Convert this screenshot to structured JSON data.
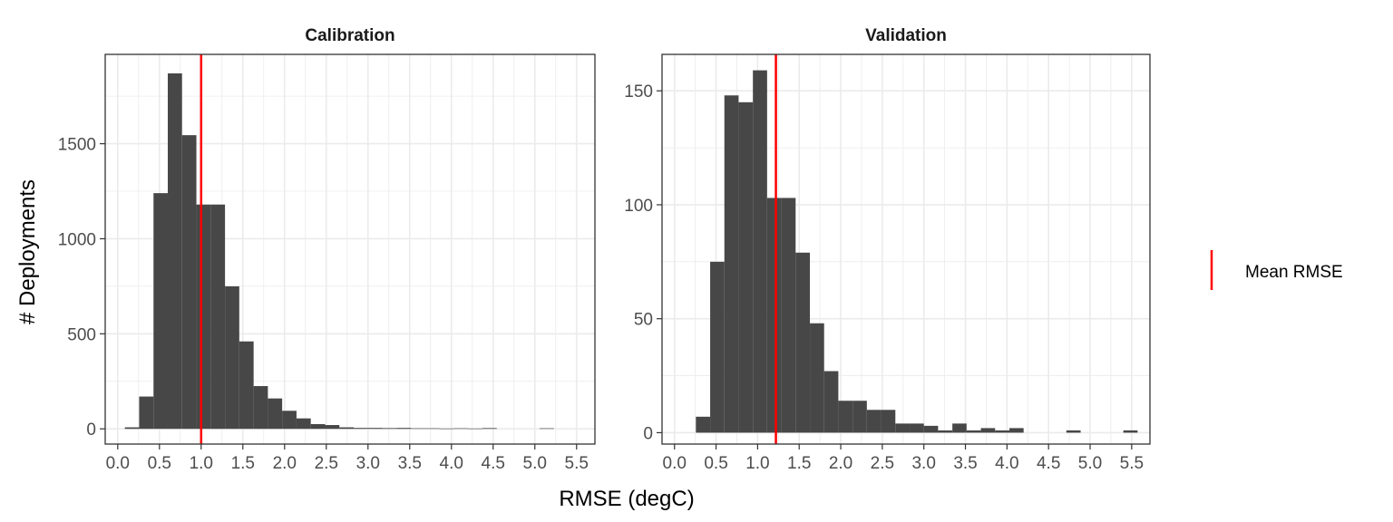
{
  "figure": {
    "xlabel": "RMSE (degC)",
    "ylabel": "# Deployments",
    "legend": {
      "label": "Mean RMSE",
      "color": "#ff0000",
      "position": "right"
    },
    "bar_color": "#474747",
    "grid_color": "#ebebeb",
    "panel_border_color": "#333333"
  },
  "chart_data": [
    {
      "type": "bar",
      "title": "Calibration",
      "xlabel": "RMSE (degC)",
      "ylabel": "# Deployments",
      "bin_width": 0.1714,
      "bins": [
        {
          "x0": 0.086,
          "x1": 0.257,
          "count": 8
        },
        {
          "x0": 0.257,
          "x1": 0.429,
          "count": 170
        },
        {
          "x0": 0.429,
          "x1": 0.6,
          "count": 1240
        },
        {
          "x0": 0.6,
          "x1": 0.771,
          "count": 1870
        },
        {
          "x0": 0.771,
          "x1": 0.943,
          "count": 1545
        },
        {
          "x0": 0.943,
          "x1": 1.114,
          "count": 1180
        },
        {
          "x0": 1.114,
          "x1": 1.286,
          "count": 1180
        },
        {
          "x0": 1.286,
          "x1": 1.457,
          "count": 750
        },
        {
          "x0": 1.457,
          "x1": 1.629,
          "count": 460
        },
        {
          "x0": 1.629,
          "x1": 1.8,
          "count": 225
        },
        {
          "x0": 1.8,
          "x1": 1.971,
          "count": 160
        },
        {
          "x0": 1.971,
          "x1": 2.143,
          "count": 95
        },
        {
          "x0": 2.143,
          "x1": 2.314,
          "count": 55
        },
        {
          "x0": 2.314,
          "x1": 2.486,
          "count": 25
        },
        {
          "x0": 2.486,
          "x1": 2.657,
          "count": 20
        },
        {
          "x0": 2.657,
          "x1": 2.829,
          "count": 8
        },
        {
          "x0": 2.829,
          "x1": 3.0,
          "count": 5
        },
        {
          "x0": 3.0,
          "x1": 3.171,
          "count": 5
        },
        {
          "x0": 3.171,
          "x1": 3.343,
          "count": 4
        },
        {
          "x0": 3.343,
          "x1": 3.514,
          "count": 5
        },
        {
          "x0": 3.514,
          "x1": 3.686,
          "count": 3
        },
        {
          "x0": 3.686,
          "x1": 3.857,
          "count": 3
        },
        {
          "x0": 3.857,
          "x1": 4.029,
          "count": 2
        },
        {
          "x0": 4.029,
          "x1": 4.2,
          "count": 3
        },
        {
          "x0": 4.2,
          "x1": 4.371,
          "count": 2
        },
        {
          "x0": 4.371,
          "x1": 4.543,
          "count": 4
        },
        {
          "x0": 5.057,
          "x1": 5.229,
          "count": 3
        }
      ],
      "mean_line": 1.0,
      "xlim": [
        -0.15,
        5.72
      ],
      "ylim": [
        -80,
        1970
      ],
      "xticks": [
        0.0,
        0.5,
        1.0,
        1.5,
        2.0,
        2.5,
        3.0,
        3.5,
        4.0,
        4.5,
        5.0,
        5.5
      ],
      "xtick_labels": [
        "0.0",
        "0.5",
        "1.0",
        "1.5",
        "2.0",
        "2.5",
        "3.0",
        "3.5",
        "4.0",
        "4.5",
        "5.0",
        "5.5"
      ],
      "yticks": [
        0,
        500,
        1000,
        1500
      ],
      "ytick_labels": [
        "0",
        "500",
        "1000",
        "1500"
      ],
      "grid": true
    },
    {
      "type": "bar",
      "title": "Validation",
      "xlabel": "RMSE (degC)",
      "ylabel": "# Deployments",
      "bin_width": 0.1714,
      "bins": [
        {
          "x0": 0.257,
          "x1": 0.429,
          "count": 7
        },
        {
          "x0": 0.429,
          "x1": 0.6,
          "count": 75
        },
        {
          "x0": 0.6,
          "x1": 0.771,
          "count": 148
        },
        {
          "x0": 0.771,
          "x1": 0.943,
          "count": 145
        },
        {
          "x0": 0.943,
          "x1": 1.114,
          "count": 159
        },
        {
          "x0": 1.114,
          "x1": 1.286,
          "count": 103
        },
        {
          "x0": 1.286,
          "x1": 1.457,
          "count": 103
        },
        {
          "x0": 1.457,
          "x1": 1.629,
          "count": 79
        },
        {
          "x0": 1.629,
          "x1": 1.8,
          "count": 48
        },
        {
          "x0": 1.8,
          "x1": 1.971,
          "count": 27
        },
        {
          "x0": 1.971,
          "x1": 2.143,
          "count": 14
        },
        {
          "x0": 2.143,
          "x1": 2.314,
          "count": 14
        },
        {
          "x0": 2.314,
          "x1": 2.486,
          "count": 10
        },
        {
          "x0": 2.486,
          "x1": 2.657,
          "count": 10
        },
        {
          "x0": 2.657,
          "x1": 2.829,
          "count": 4
        },
        {
          "x0": 2.829,
          "x1": 3.0,
          "count": 4
        },
        {
          "x0": 3.0,
          "x1": 3.171,
          "count": 3
        },
        {
          "x0": 3.171,
          "x1": 3.343,
          "count": 1
        },
        {
          "x0": 3.343,
          "x1": 3.514,
          "count": 4
        },
        {
          "x0": 3.514,
          "x1": 3.686,
          "count": 1
        },
        {
          "x0": 3.686,
          "x1": 3.857,
          "count": 2
        },
        {
          "x0": 3.857,
          "x1": 4.029,
          "count": 1
        },
        {
          "x0": 4.029,
          "x1": 4.2,
          "count": 2
        },
        {
          "x0": 4.714,
          "x1": 4.886,
          "count": 1
        },
        {
          "x0": 5.4,
          "x1": 5.571,
          "count": 1
        }
      ],
      "mean_line": 1.22,
      "xlim": [
        -0.15,
        5.72
      ],
      "ylim": [
        -5,
        166
      ],
      "xticks": [
        0.0,
        0.5,
        1.0,
        1.5,
        2.0,
        2.5,
        3.0,
        3.5,
        4.0,
        4.5,
        5.0,
        5.5
      ],
      "xtick_labels": [
        "0.0",
        "0.5",
        "1.0",
        "1.5",
        "2.0",
        "2.5",
        "3.0",
        "3.5",
        "4.0",
        "4.5",
        "5.0",
        "5.5"
      ],
      "yticks": [
        0,
        50,
        100,
        150
      ],
      "ytick_labels": [
        "0",
        "50",
        "100",
        "150"
      ],
      "grid": true
    }
  ]
}
